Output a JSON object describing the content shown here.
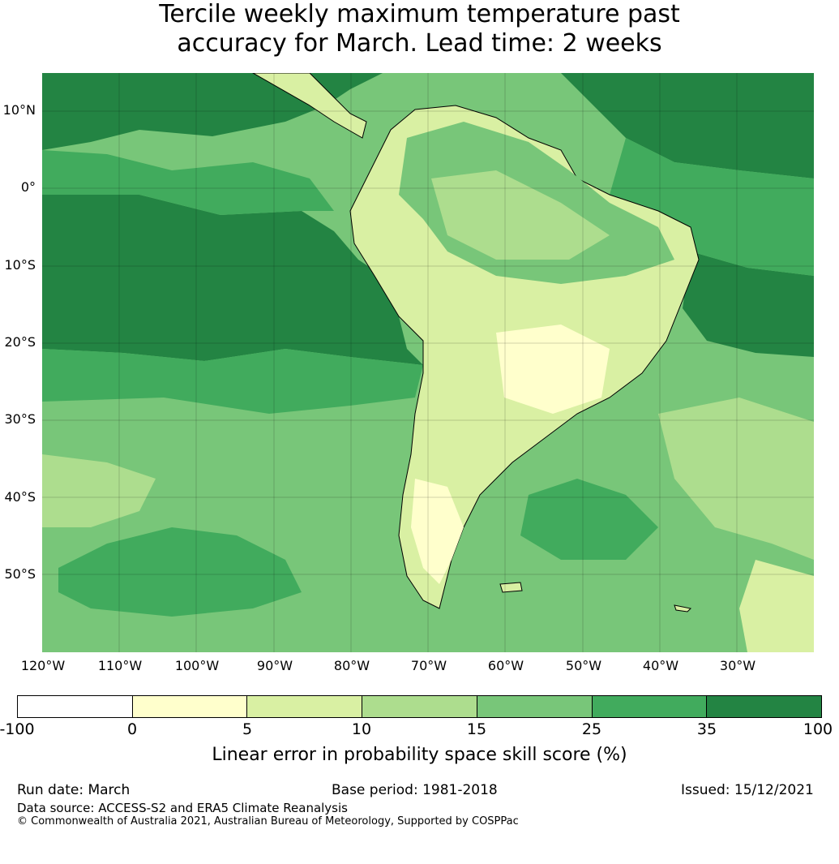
{
  "title": {
    "line1": "Tercile weekly maximum temperature past",
    "line2": "accuracy for March. Lead time: 2 weeks"
  },
  "map": {
    "lat_labels": [
      "10°N",
      "0°",
      "10°S",
      "20°S",
      "30°S",
      "40°S",
      "50°S"
    ],
    "lon_labels": [
      "120°W",
      "110°W",
      "100°W",
      "90°W",
      "80°W",
      "70°W",
      "60°W",
      "50°W",
      "40°W",
      "30°W"
    ],
    "ocean_color": "#74c476",
    "land_color": "#d9f0a3"
  },
  "colorbar": {
    "tick_labels": [
      "-100",
      "0",
      "5",
      "10",
      "15",
      "25",
      "35",
      "100"
    ],
    "colors": [
      "#ffffff",
      "#ffffcc",
      "#d9f0a3",
      "#addd8e",
      "#78c679",
      "#41ab5d",
      "#238443"
    ],
    "label": "Linear error in probability space skill score (%)"
  },
  "footer": {
    "run_date": "Run date: March",
    "base_period": "Base period: 1981-2018",
    "issued": "Issued: 15/12/2021",
    "data_source": "Data source: ACCESS-S2 and ERA5 Climate Reanalysis",
    "copyright": "© Commonwealth of Australia 2021, Australian Bureau of Meteorology, Supported by COSPPac"
  }
}
